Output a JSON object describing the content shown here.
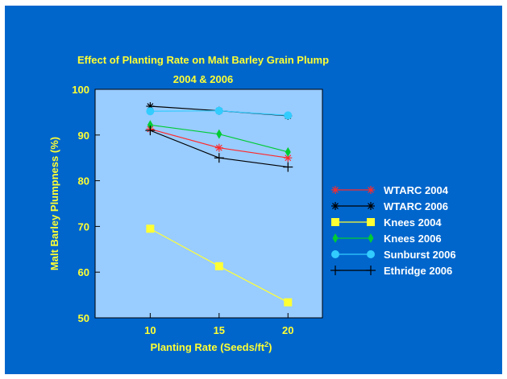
{
  "chart_data": {
    "type": "line",
    "title": "Effect of Planting Rate on Malt Barley Grain Plump",
    "subtitle": "2004 & 2006",
    "xlabel": "Planting Rate (Seeds/ft",
    "xlabel_sup": "2",
    "xlabel_end": ")",
    "ylabel": "Malt Barley Plumpness (%)",
    "x": [
      10,
      15,
      20
    ],
    "x_ticks": [
      "10",
      "15",
      "20"
    ],
    "xlim": [
      6,
      22.5
    ],
    "ylim": [
      50,
      100
    ],
    "y_ticks": [
      "50",
      "60",
      "70",
      "80",
      "90",
      "100"
    ],
    "legend_position": "right",
    "series": [
      {
        "name": "WTARC 2004",
        "color": "#ff2a2a",
        "marker": "asterisk",
        "values": [
          91.3,
          87.2,
          85.0
        ]
      },
      {
        "name": "WTARC 2006",
        "color": "#000000",
        "marker": "asterisk",
        "values": [
          96.3,
          95.3,
          94.2
        ]
      },
      {
        "name": "Knees 2004",
        "color": "#ffff33",
        "marker": "square",
        "values": [
          69.5,
          61.3,
          53.4
        ]
      },
      {
        "name": "Knees 2006",
        "color": "#00cc33",
        "marker": "diamond",
        "values": [
          92.2,
          90.2,
          86.3
        ]
      },
      {
        "name": "Sunburst 2006",
        "color": "#33ccff",
        "marker": "circle",
        "values": [
          95.2,
          95.3,
          94.3
        ]
      },
      {
        "name": "Ethridge 2006",
        "color": "#000000",
        "marker": "plus",
        "values": [
          91.0,
          85.0,
          83.0
        ]
      }
    ]
  }
}
